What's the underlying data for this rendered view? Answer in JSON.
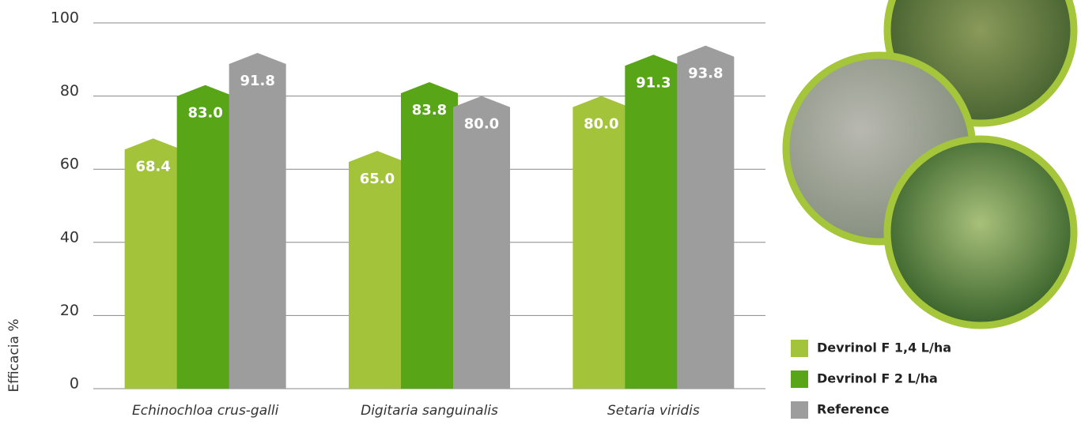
{
  "chart_data": {
    "type": "bar",
    "ylabel": "Efficacia %",
    "categories": [
      "Echinochloa crus-galli",
      "Digitaria sanguinalis",
      "Setaria viridis"
    ],
    "series": [
      {
        "name": "Devrinol F 1,4 L/ha",
        "color": "#a3c43a",
        "values": [
          68.4,
          65,
          80
        ],
        "value_labels": [
          "68.4",
          "65.0",
          "80.0"
        ]
      },
      {
        "name": "Devrinol F 2 L/ha",
        "color": "#58a618",
        "values": [
          83,
          83.8,
          91.3
        ],
        "value_labels": [
          "83.0",
          "83.8",
          "91.3"
        ]
      },
      {
        "name": "Reference",
        "color": "#9d9d9d",
        "values": [
          91.8,
          80,
          93.8
        ],
        "value_labels": [
          "91.8",
          "80.0",
          "93.8"
        ]
      }
    ],
    "ylim": [
      0,
      100
    ],
    "yticks": [
      0,
      20,
      40,
      60,
      80,
      100
    ],
    "grid": true,
    "legend": "lower right"
  }
}
